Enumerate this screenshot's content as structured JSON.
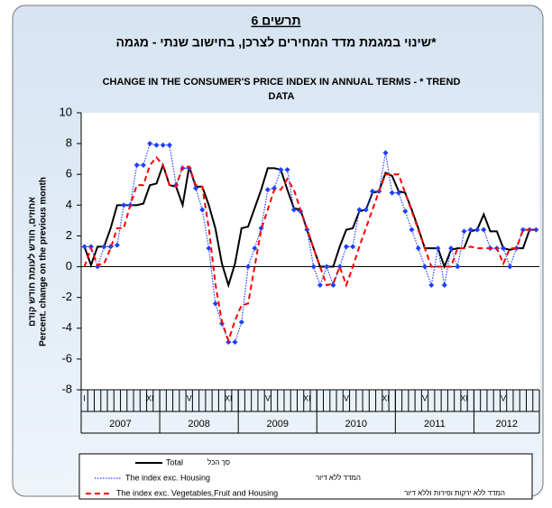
{
  "chart_data": {
    "type": "line",
    "title": "תרשים 6",
    "subtitle": "שינוי במגמת מדד המחירים לצרכן, בחישוב שנתי - מגמה*",
    "title_en": [
      "CHANGE IN THE CONSUMER'S PRICE INDEX IN ANNUAL TERMS -  * TREND",
      "DATA"
    ],
    "y_label": [
      "אחוזים, חודש לעומת חודש קודם",
      "Percent. change on the previous month"
    ],
    "ylim": [
      -8,
      10
    ],
    "yticks": [
      -8,
      -6,
      -4,
      -2,
      0,
      2,
      4,
      6,
      8,
      10
    ],
    "years": [
      "2007",
      "2008",
      "2009",
      "2010",
      "2011",
      "2012"
    ],
    "categories": [
      "I",
      null,
      null,
      null,
      null,
      null,
      null,
      null,
      null,
      null,
      "XI",
      null,
      null,
      null,
      null,
      null,
      "V",
      null,
      null,
      null,
      null,
      null,
      "XI",
      null,
      null,
      null,
      null,
      null,
      "V",
      null,
      null,
      null,
      null,
      null,
      "XI",
      null,
      null,
      null,
      null,
      null,
      "V",
      null,
      null,
      null,
      null,
      null,
      "XI",
      null,
      null,
      null,
      null,
      null,
      "V",
      null,
      null,
      null,
      null,
      null,
      "XI",
      null,
      null,
      null,
      null,
      null,
      "V",
      null,
      null,
      null,
      null,
      null
    ],
    "series": [
      {
        "name": "Total",
        "hebrew_name": "סך הכל",
        "color": "#000000",
        "style": "solid",
        "values": [
          1.3,
          0.1,
          1.3,
          1.3,
          2.5,
          4.0,
          4.0,
          4.0,
          4.0,
          4.1,
          5.3,
          5.4,
          6.6,
          5.3,
          5.2,
          4.0,
          6.5,
          5.2,
          5.2,
          4.0,
          2.5,
          0.2,
          -1.2,
          0.2,
          2.5,
          2.6,
          3.8,
          5.0,
          6.4,
          6.4,
          6.3,
          5.0,
          3.8,
          3.7,
          2.4,
          1.2,
          0.0,
          0.0,
          0.0,
          1.3,
          2.4,
          2.5,
          3.6,
          3.7,
          4.8,
          4.9,
          6.1,
          5.9,
          4.9,
          4.8,
          3.7,
          2.5,
          1.2,
          1.2,
          1.2,
          0.0,
          1.1,
          1.2,
          1.2,
          2.3,
          2.4,
          3.4,
          2.3,
          2.3,
          1.2,
          1.1,
          1.2,
          1.2,
          2.4,
          2.4
        ]
      },
      {
        "name": "The index exc. Housing",
        "hebrew_name": "המדד ללא דיור",
        "color": "#1f3fff",
        "style": "dotted",
        "values": [
          1.3,
          1.3,
          0.0,
          1.3,
          1.3,
          1.4,
          4.0,
          4.0,
          6.6,
          6.6,
          8.0,
          7.9,
          7.9,
          7.9,
          5.3,
          6.4,
          6.4,
          5.1,
          3.7,
          1.2,
          -2.4,
          -3.7,
          -4.9,
          -4.9,
          -3.6,
          0.0,
          1.2,
          2.5,
          5.0,
          5.1,
          6.3,
          6.3,
          3.7,
          3.6,
          2.4,
          0.0,
          -1.2,
          0.0,
          -1.2,
          0.0,
          1.3,
          1.3,
          3.7,
          3.7,
          4.9,
          4.9,
          7.4,
          4.8,
          4.8,
          3.6,
          2.4,
          1.2,
          0.0,
          -1.2,
          1.2,
          -1.2,
          1.2,
          0.0,
          2.3,
          2.4,
          2.4,
          2.4,
          1.2,
          1.2,
          1.2,
          0.0,
          1.2,
          2.4,
          2.4,
          2.4
        ]
      },
      {
        "name": "The index exc. Vegetables,Fruit and Housing",
        "hebrew_name": "המדד ללא ירקות ופירות וללא דיור",
        "color": "#ff0000",
        "style": "dashed",
        "values": [
          0.0,
          1.2,
          0.1,
          0.2,
          1.2,
          2.5,
          2.5,
          4.0,
          5.3,
          5.3,
          6.6,
          7.1,
          6.6,
          5.3,
          5.2,
          6.5,
          6.5,
          5.3,
          5.2,
          2.5,
          -1.1,
          -3.6,
          -4.8,
          -3.5,
          -2.5,
          -2.4,
          0.0,
          2.4,
          3.7,
          5.0,
          5.0,
          5.7,
          5.0,
          3.7,
          2.5,
          1.2,
          0.0,
          -1.2,
          -1.1,
          0.0,
          -1.2,
          0.0,
          1.3,
          2.5,
          3.7,
          4.9,
          6.0,
          6.0,
          6.0,
          4.8,
          3.6,
          2.4,
          1.2,
          0.0,
          0.0,
          0.0,
          0.0,
          1.2,
          1.2,
          1.3,
          1.2,
          1.2,
          1.2,
          1.2,
          0.2,
          1.2,
          1.2,
          2.4,
          2.4,
          2.4
        ]
      }
    ]
  }
}
